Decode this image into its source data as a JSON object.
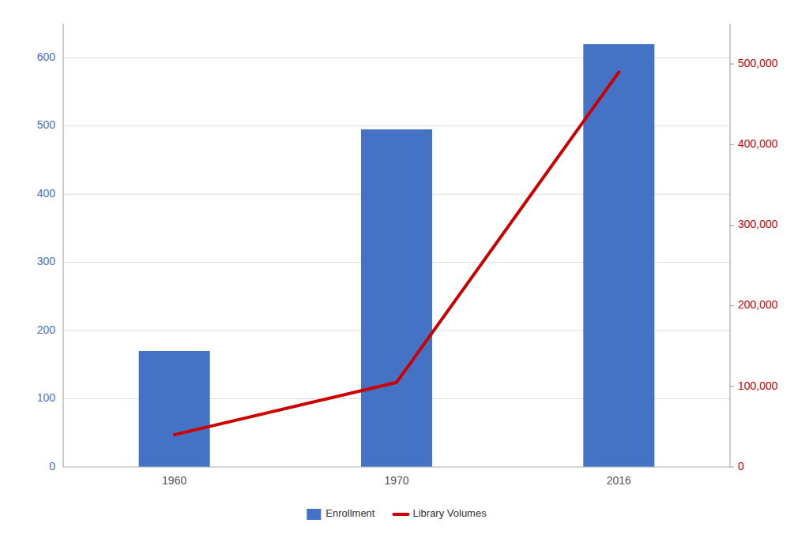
{
  "chart_data": {
    "type": "bar",
    "categories": [
      "1960",
      "1970",
      "2016"
    ],
    "series": [
      {
        "name": "Enrollment",
        "type": "bar",
        "color": "#4472C4",
        "values": [
          170,
          495,
          620
        ]
      },
      {
        "name": "Library Volumes",
        "type": "line",
        "color": "#CC0000",
        "axis": "y2",
        "values": [
          40000,
          105000,
          490000
        ]
      }
    ],
    "ylim": [
      0,
      650
    ],
    "yticks": [
      0,
      100,
      200,
      300,
      400,
      500,
      600
    ],
    "y2lim": [
      0,
      550000
    ],
    "y2ticks": [
      0,
      {
        "value": 100000,
        "label": "100,000"
      },
      {
        "value": 200000,
        "label": "200,000"
      },
      {
        "value": 300000,
        "label": "300,000"
      },
      {
        "value": 400000,
        "label": "400,000"
      },
      {
        "value": 500000,
        "label": "500,000"
      }
    ],
    "grid": true,
    "legend": "bottom"
  }
}
